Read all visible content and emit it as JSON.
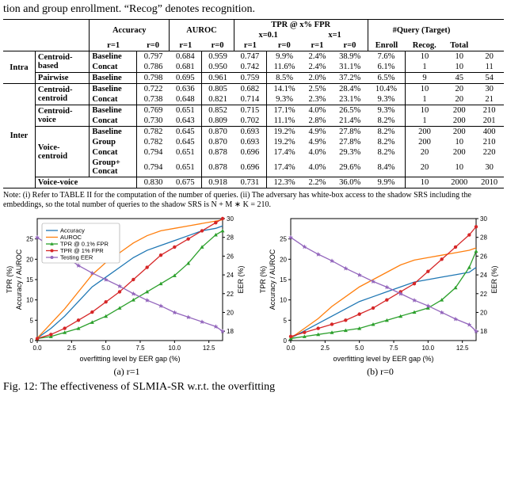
{
  "toptext": "tion and group enrollment. “Recog” denotes recognition.",
  "headers": {
    "acc": "Accuracy",
    "auroc": "AUROC",
    "tpr": "TPR @ x% FPR",
    "x01": "x=0.1",
    "x1": "x=1",
    "query": "#Query (Target)",
    "r1": "r=1",
    "r0": "r=0",
    "enroll": "Enroll",
    "recog": "Recog.",
    "total": "Total"
  },
  "rowgroups": {
    "intra": "Intra",
    "inter": "Inter"
  },
  "methods": {
    "centroidbased": "Centroid-\nbased",
    "pairwise": "Pairwise",
    "centroidcentroid": "Centroid-\ncentroid",
    "centroidvoice": "Centroid-\nvoice",
    "voicecentroid": "Voice-\ncentroid",
    "voicevoice": "Voice-voice"
  },
  "variants": {
    "baseline": "Baseline",
    "concat": "Concat",
    "group": "Group",
    "groupconcat": "Group+\nConcat"
  },
  "rows": [
    [
      "0.797",
      "0.684",
      "0.959",
      "0.747",
      "9.9%",
      "2.4%",
      "38.9%",
      "7.6%",
      "10",
      "10",
      "20"
    ],
    [
      "0.786",
      "0.681",
      "0.950",
      "0.742",
      "11.6%",
      "2.4%",
      "31.1%",
      "6.1%",
      "1",
      "10",
      "11"
    ],
    [
      "0.798",
      "0.695",
      "0.961",
      "0.759",
      "8.5%",
      "2.0%",
      "37.2%",
      "6.5%",
      "9",
      "45",
      "54"
    ],
    [
      "0.722",
      "0.636",
      "0.805",
      "0.682",
      "14.1%",
      "2.5%",
      "28.4%",
      "10.4%",
      "10",
      "20",
      "30"
    ],
    [
      "0.738",
      "0.648",
      "0.821",
      "0.714",
      "9.3%",
      "2.3%",
      "23.1%",
      "9.3%",
      "1",
      "20",
      "21"
    ],
    [
      "0.769",
      "0.651",
      "0.852",
      "0.715",
      "17.1%",
      "4.0%",
      "26.5%",
      "9.3%",
      "10",
      "200",
      "210"
    ],
    [
      "0.730",
      "0.643",
      "0.809",
      "0.702",
      "11.1%",
      "2.8%",
      "21.4%",
      "8.2%",
      "1",
      "200",
      "201"
    ],
    [
      "0.782",
      "0.645",
      "0.870",
      "0.693",
      "19.2%",
      "4.9%",
      "27.8%",
      "8.2%",
      "200",
      "200",
      "400"
    ],
    [
      "0.782",
      "0.645",
      "0.870",
      "0.693",
      "19.2%",
      "4.9%",
      "27.8%",
      "8.2%",
      "200",
      "10",
      "210"
    ],
    [
      "0.794",
      "0.651",
      "0.878",
      "0.696",
      "17.4%",
      "4.0%",
      "29.3%",
      "8.2%",
      "20",
      "200",
      "220"
    ],
    [
      "0.794",
      "0.651",
      "0.878",
      "0.696",
      "17.4%",
      "4.0%",
      "29.6%",
      "8.4%",
      "20",
      "10",
      "30"
    ],
    [
      "0.830",
      "0.675",
      "0.918",
      "0.731",
      "12.3%",
      "2.2%",
      "36.0%",
      "9.9%",
      "10",
      "2000",
      "2010"
    ]
  ],
  "note": "Note: (i) Refer to TABLE II for the computation of the number of queries. (ii) The adversary has white-box access to the shadow SRS including the embeddings, so the total number of queries to the shadow SRS is N + M ∗ K = 210.",
  "caption_a": "(a) r=1",
  "caption_b": "(b) r=0",
  "figline": "Fig. 12: The effectiveness of SLMIA-SR w.r.t. the overfitting",
  "chart": {
    "x_label": "overfitting level by EER gap (%)",
    "y_left_label": "TPR (%)",
    "y_right_label": "EER (%)",
    "y_left2_label": "Accuracy / AUROC",
    "x_ticks": [
      "0.0",
      "2.5",
      "5.0",
      "7.5",
      "10.0",
      "12.5"
    ],
    "left_ticks_tpr": [
      "0",
      "5",
      "10",
      "15",
      "20",
      "25"
    ],
    "left_ticks_acc": [
      "0.5",
      "0.6",
      "0.7",
      "0.8",
      "0.9"
    ],
    "right_ticks": [
      "18",
      "20",
      "22",
      "24",
      "26",
      "28",
      "30"
    ],
    "legend": [
      {
        "name": "Accuracy",
        "color": "#1f77b4",
        "marker": "none",
        "dash": "none"
      },
      {
        "name": "AUROC",
        "color": "#ff7f0e",
        "marker": "none",
        "dash": "none"
      },
      {
        "name": "TPR @ 0.1% FPR",
        "color": "#2ca02c",
        "marker": "triangle",
        "dash": "none"
      },
      {
        "name": "TPR @ 1% FPR",
        "color": "#d62728",
        "marker": "circle",
        "dash": "none"
      },
      {
        "name": "Testing EER",
        "color": "#9467bd",
        "marker": "star",
        "dash": "none"
      }
    ],
    "colors": {
      "accuracy": "#1f77b4",
      "auroc": "#ff7f0e",
      "tpr01": "#2ca02c",
      "tpr1": "#d62728",
      "eer": "#9467bd",
      "grid": "#cccccc",
      "axis": "#000000",
      "bg": "#ffffff"
    },
    "series_a": {
      "x": [
        0,
        1,
        2,
        3,
        4,
        5,
        6,
        7,
        8,
        9,
        10,
        11,
        12,
        13,
        13.5
      ],
      "accuracy": [
        0.51,
        0.55,
        0.6,
        0.66,
        0.72,
        0.76,
        0.8,
        0.84,
        0.87,
        0.89,
        0.91,
        0.93,
        0.95,
        0.96,
        0.97
      ],
      "auroc": [
        0.51,
        0.57,
        0.63,
        0.7,
        0.77,
        0.82,
        0.86,
        0.9,
        0.93,
        0.95,
        0.96,
        0.97,
        0.98,
        0.99,
        0.995
      ],
      "tpr01": [
        0.5,
        1,
        2,
        3,
        4.5,
        6,
        8,
        10,
        12,
        14,
        16,
        19,
        23,
        26,
        27
      ],
      "tpr1": [
        0.5,
        1.5,
        3,
        5,
        7,
        9.5,
        12,
        15,
        18,
        21,
        23,
        25,
        27,
        29,
        30
      ],
      "eer": [
        28,
        27,
        26,
        25,
        24.2,
        23.5,
        22.8,
        22,
        21.3,
        20.7,
        20,
        19.5,
        19,
        18.5,
        18
      ]
    },
    "series_b": {
      "x": [
        0,
        1,
        2,
        3,
        4,
        5,
        6,
        7,
        8,
        9,
        10,
        11,
        12,
        13,
        13.5
      ],
      "accuracy": [
        0.51,
        0.54,
        0.57,
        0.6,
        0.63,
        0.66,
        0.68,
        0.7,
        0.72,
        0.74,
        0.75,
        0.76,
        0.77,
        0.78,
        0.8
      ],
      "auroc": [
        0.51,
        0.55,
        0.59,
        0.64,
        0.68,
        0.72,
        0.75,
        0.78,
        0.81,
        0.83,
        0.84,
        0.85,
        0.86,
        0.87,
        0.88
      ],
      "tpr01": [
        0.5,
        1,
        1.5,
        2,
        2.5,
        3,
        4,
        5,
        6,
        7,
        8,
        10,
        13,
        18,
        22
      ],
      "tpr1": [
        1,
        2,
        3,
        4,
        5,
        6.5,
        8,
        10,
        12,
        14,
        17,
        20,
        23,
        26,
        28
      ],
      "eer": [
        28,
        27,
        26.2,
        25.5,
        24.7,
        24,
        23.3,
        22.7,
        22,
        21.3,
        20.7,
        20,
        19.3,
        18.7,
        18
      ]
    },
    "axes": {
      "x_min": 0,
      "x_max": 13.5,
      "acc_min": 0.5,
      "acc_max": 1.0,
      "tpr_min": 0,
      "tpr_max": 30,
      "eer_min": 17,
      "eer_max": 30
    }
  }
}
